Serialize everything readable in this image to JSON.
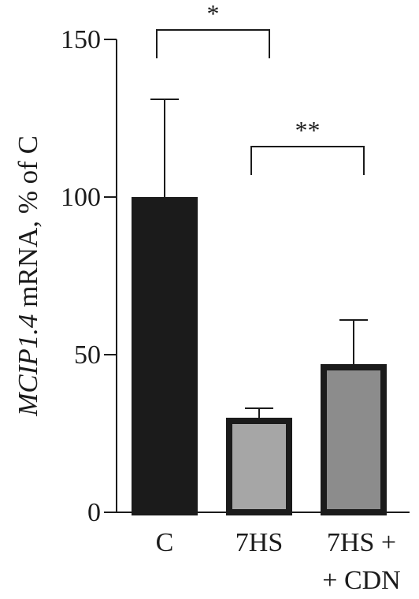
{
  "chart_data": {
    "type": "bar",
    "categories": [
      [
        "C"
      ],
      [
        "7HS"
      ],
      [
        "7HS +",
        "+ CDN"
      ]
    ],
    "values": [
      99,
      29,
      46
    ],
    "errors": [
      32,
      4,
      15
    ],
    "ylabel_italic": "MCIP1.4",
    "ylabel_rest": " mRNA, % of C",
    "ylim": [
      0,
      150
    ],
    "yticks": [
      0,
      50,
      100,
      150
    ],
    "bar_colors": [
      "#1b1b1b",
      "#a6a6a6",
      "#8c8c8c"
    ],
    "bar_edge": "#1b1b1b",
    "significance": [
      {
        "from": 0,
        "to": 1,
        "label": "*",
        "level": 150
      },
      {
        "from": 1,
        "to": 2,
        "label": "**",
        "level": 113
      }
    ]
  }
}
